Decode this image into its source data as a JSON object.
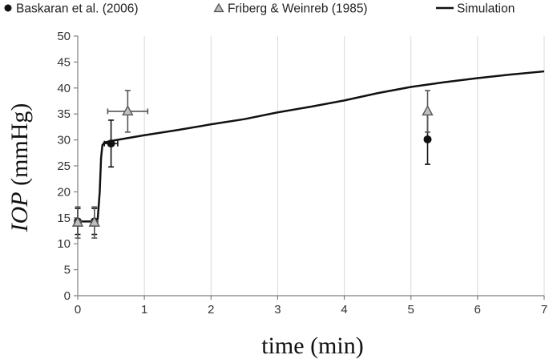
{
  "chart_data": {
    "type": "scatter",
    "xlabel": "time (min)",
    "ylabel_italic": "IOP",
    "ylabel_rest": " (mmHg)",
    "xlim": [
      0,
      7
    ],
    "ylim": [
      0,
      50
    ],
    "x_ticks": [
      0,
      1,
      2,
      3,
      4,
      5,
      6,
      7
    ],
    "y_ticks": [
      0,
      5,
      10,
      15,
      20,
      25,
      30,
      35,
      40,
      45,
      50
    ],
    "grid": "vertical",
    "legend_position": "top",
    "series": [
      {
        "name": "Baskaran et al. (2006)",
        "marker": "circle",
        "color": "#111111",
        "points": [
          {
            "x": 0,
            "y": 14.3,
            "yerr": 2.5,
            "xerr": 0
          },
          {
            "x": 0.25,
            "y": 14.3,
            "yerr": 2.5,
            "xerr": 0
          },
          {
            "x": 0.5,
            "y": 29.3,
            "yerr": 4.5,
            "xerr": 0.1
          },
          {
            "x": 5.25,
            "y": 30.1,
            "yerr": 4.8,
            "xerr": 0
          }
        ]
      },
      {
        "name": "Friberg & Weinreb (1985)",
        "marker": "triangle",
        "color": "#555555",
        "fill": "#bfbfbf",
        "points": [
          {
            "x": 0,
            "y": 14.1,
            "yerr": 3.0,
            "xerr": 0.05
          },
          {
            "x": 0.25,
            "y": 14.1,
            "yerr": 3.0,
            "xerr": 0.05
          },
          {
            "x": 0.75,
            "y": 35.5,
            "yerr": 4.0,
            "xerr": 0.3
          },
          {
            "x": 5.25,
            "y": 35.5,
            "yerr": 4.0,
            "xerr": 0
          }
        ]
      },
      {
        "name": "Simulation",
        "type": "line",
        "color": "#111111",
        "points": [
          [
            0,
            14.3
          ],
          [
            0.25,
            14.3
          ],
          [
            0.3,
            14.8
          ],
          [
            0.33,
            20
          ],
          [
            0.35,
            26.5
          ],
          [
            0.37,
            29.0
          ],
          [
            0.4,
            29.5
          ],
          [
            0.5,
            29.8
          ],
          [
            1,
            30.9
          ],
          [
            1.5,
            31.9
          ],
          [
            2,
            33.0
          ],
          [
            2.5,
            34.0
          ],
          [
            3,
            35.3
          ],
          [
            3.5,
            36.4
          ],
          [
            4,
            37.6
          ],
          [
            4.5,
            39.0
          ],
          [
            5,
            40.2
          ],
          [
            5.5,
            41.1
          ],
          [
            6,
            41.9
          ],
          [
            6.5,
            42.6
          ],
          [
            7,
            43.2
          ]
        ]
      }
    ]
  },
  "colors": {
    "axis": "#7f7f7f",
    "grid": "#d9d9d9",
    "triangle_fill": "#bfbfbf"
  }
}
